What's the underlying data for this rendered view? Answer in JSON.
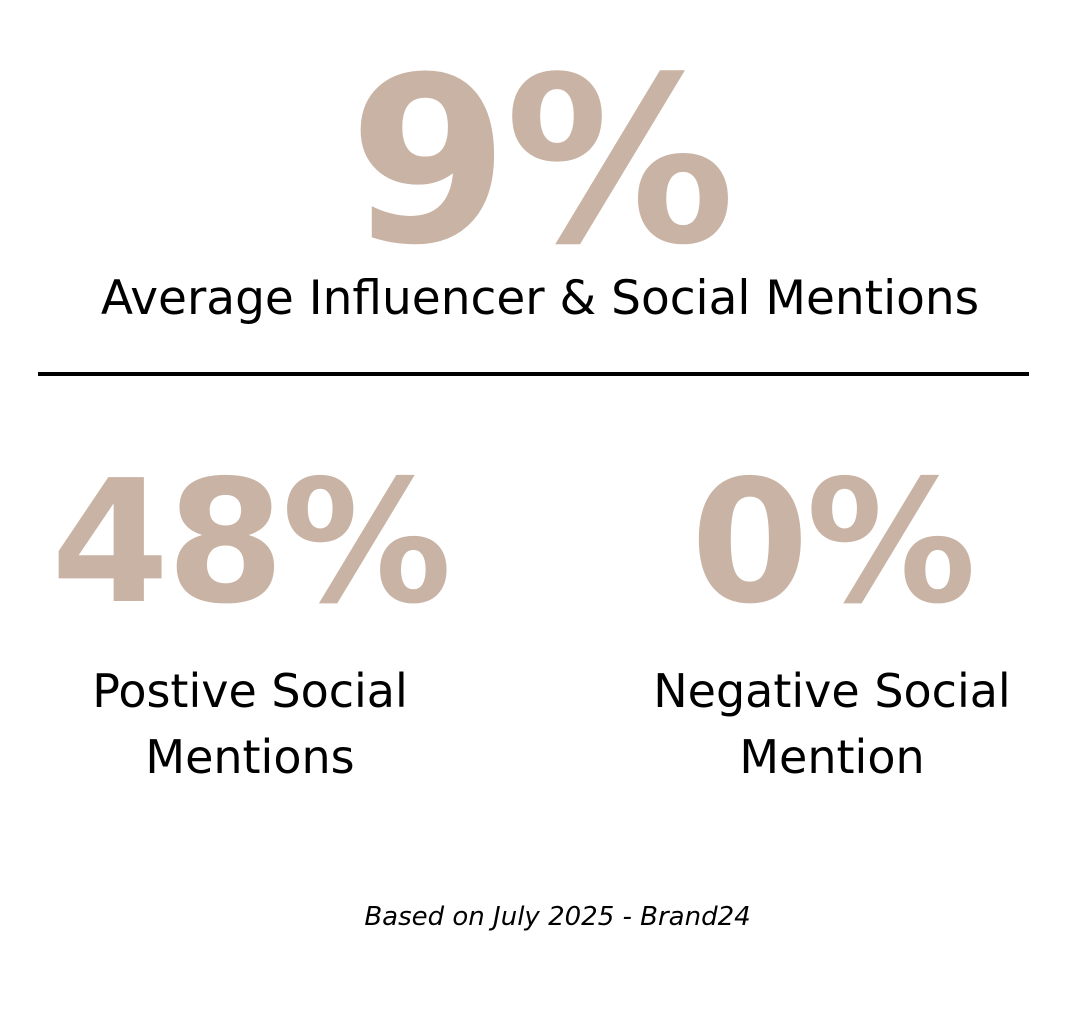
{
  "colors": {
    "accent": "#c9b3a4",
    "text": "#000000",
    "background": "#ffffff"
  },
  "headline": {
    "value": "9%",
    "label": "Average Influencer & Social Mentions"
  },
  "stats": [
    {
      "value": "48%",
      "label_line1": "Postive Social",
      "label_line2": "Mentions"
    },
    {
      "value": "0%",
      "label_line1": "Negative Social",
      "label_line2": "Mention"
    }
  ],
  "footnote": "Based on July 2025 - Brand24"
}
